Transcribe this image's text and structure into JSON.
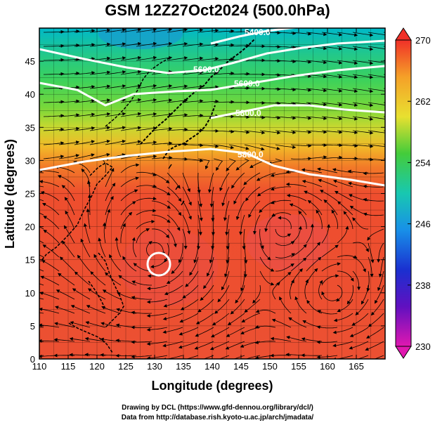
{
  "title": "GSM 12Z27Oct2024 (500.0hPa)",
  "map": {
    "type": "meteorological-map",
    "variable": "temperature (colour) with geopotential height contours and streamlines",
    "xlabel": "Longitude (degrees)",
    "ylabel": "Latitude (degrees)",
    "xlim": [
      110,
      170
    ],
    "ylim": [
      0,
      50
    ],
    "xticks": [
      "110",
      "115",
      "120",
      "125",
      "130",
      "135",
      "140",
      "145",
      "150",
      "155",
      "160",
      "165"
    ],
    "yticks": [
      "0",
      "5",
      "10",
      "15",
      "20",
      "25",
      "30",
      "35",
      "40",
      "45"
    ],
    "contours": [
      {
        "label": "5400.0"
      },
      {
        "label": "5600.0"
      },
      {
        "label": "5600.0"
      },
      {
        "label": "5800.0"
      },
      {
        "label": "5800.0"
      }
    ],
    "features": [
      "typhoon circulation near 130E 16N",
      "anticyclonic circulation near 152E 20N",
      "cyclonic circulation near 161E 10N"
    ]
  },
  "colorbar": {
    "labels": [
      "270",
      "262",
      "254",
      "246",
      "238",
      "230"
    ],
    "range": [
      230,
      270
    ]
  },
  "credits": {
    "line1": "Drawing by DCL (https://www.gfd-dennou.org/library/dcl/)",
    "line2": "Data from http://database.rish.kyoto-u.ac.jp/arch/jmadata/"
  }
}
